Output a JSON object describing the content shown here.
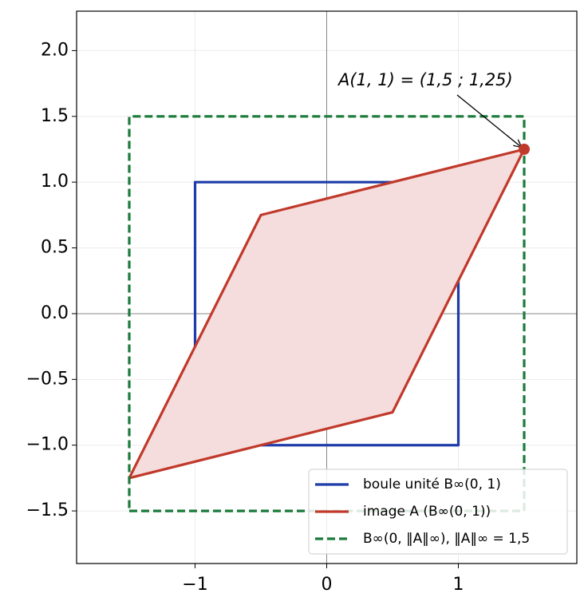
{
  "chart_data": {
    "type": "line",
    "xlim": [
      -1.9,
      1.9
    ],
    "ylim": [
      -1.9,
      2.3
    ],
    "xticks": [
      {
        "value": -1,
        "label": "−1"
      },
      0,
      1
    ],
    "yticks": [
      {
        "value": 2,
        "label": "2.0"
      },
      1.5,
      {
        "value": 1,
        "label": "1.0"
      },
      0.5,
      {
        "value": 0,
        "label": "0.0"
      },
      {
        "value": -0.5,
        "label": "−0.5"
      },
      {
        "value": -1,
        "label": "−1.0"
      },
      {
        "value": -1.5,
        "label": "−1.5"
      }
    ],
    "grid": true,
    "series": [
      {
        "name": "boule unité B∞(0, 1)",
        "color": "#1f3ca8",
        "x": [
          -1,
          1,
          1,
          -1,
          -1
        ],
        "y": [
          -1,
          -1,
          1,
          1,
          -1
        ]
      },
      {
        "name": "image A (B∞(0, 1))",
        "color": "#c0392b",
        "fill_color": "#f4dddc",
        "x": [
          1.5,
          -0.5,
          -1.5,
          0.5,
          1.5
        ],
        "y": [
          1.25,
          0.75,
          -1.25,
          -0.75,
          1.25
        ]
      },
      {
        "name": "B∞(0, ‖A‖∞), ‖A‖∞ = 1,5",
        "color": "#1a7a3a",
        "dashed": true,
        "x": [
          -1.5,
          1.5,
          1.5,
          -1.5,
          -1.5
        ],
        "y": [
          -1.5,
          -1.5,
          1.5,
          1.5,
          -1.5
        ]
      }
    ],
    "point": {
      "x": 1.5,
      "y": 1.25,
      "color": "#c0392b"
    },
    "annotation": {
      "text": "A(1, 1) = (1,5 ; 1,25)"
    },
    "legend": "lower right"
  }
}
